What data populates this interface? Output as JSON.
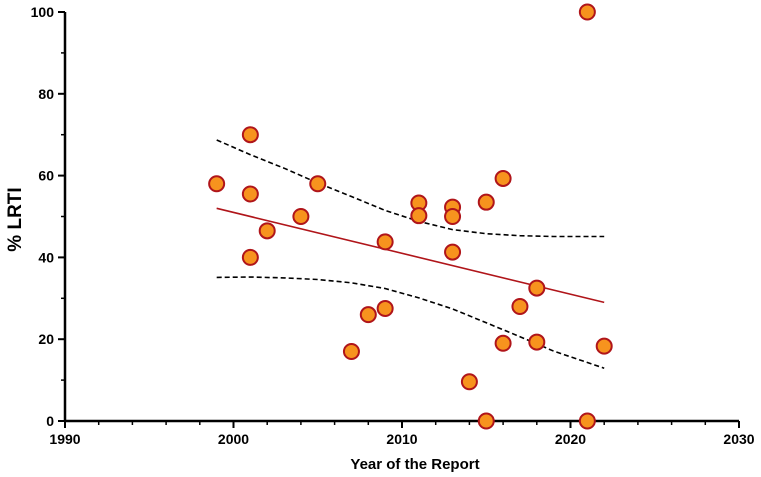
{
  "chart_data": {
    "type": "scatter",
    "title": "",
    "xlabel": "Year of the Report",
    "ylabel": "% LRTI",
    "xlim": [
      1990,
      2030
    ],
    "ylim": [
      0,
      100
    ],
    "x_ticks": [
      "1990",
      "2000",
      "2010",
      "2020",
      "2030"
    ],
    "y_ticks": [
      "0",
      "20",
      "40",
      "60",
      "80",
      "100"
    ],
    "grid": false,
    "colors": {
      "point_fill": "#f7931e",
      "point_stroke": "#b0151a",
      "regression_line": "#b0151a",
      "confidence_band": "#000000"
    },
    "points": [
      {
        "x": 1999,
        "y": 58
      },
      {
        "x": 2001,
        "y": 70
      },
      {
        "x": 2001,
        "y": 55.5
      },
      {
        "x": 2001,
        "y": 40
      },
      {
        "x": 2002,
        "y": 46.5
      },
      {
        "x": 2004,
        "y": 50
      },
      {
        "x": 2005,
        "y": 58
      },
      {
        "x": 2007,
        "y": 17
      },
      {
        "x": 2008,
        "y": 26
      },
      {
        "x": 2009,
        "y": 27.5
      },
      {
        "x": 2009,
        "y": 43.8
      },
      {
        "x": 2011,
        "y": 53.3
      },
      {
        "x": 2011,
        "y": 50.2
      },
      {
        "x": 2013,
        "y": 52.3
      },
      {
        "x": 2013,
        "y": 50
      },
      {
        "x": 2013,
        "y": 41.3
      },
      {
        "x": 2014,
        "y": 9.6
      },
      {
        "x": 2015,
        "y": 53.5
      },
      {
        "x": 2015,
        "y": 0
      },
      {
        "x": 2016,
        "y": 59.3
      },
      {
        "x": 2016,
        "y": 19
      },
      {
        "x": 2017,
        "y": 28
      },
      {
        "x": 2018,
        "y": 32.5
      },
      {
        "x": 2018,
        "y": 19.3
      },
      {
        "x": 2021,
        "y": 100
      },
      {
        "x": 2021,
        "y": 0
      },
      {
        "x": 2022,
        "y": 18.3
      }
    ],
    "regression": {
      "x": [
        1999,
        2022
      ],
      "y": [
        52,
        29
      ]
    },
    "confidence_upper": {
      "x": [
        1999,
        2001,
        2003,
        2005,
        2007,
        2009,
        2011,
        2013,
        2015,
        2017,
        2019,
        2021,
        2022
      ],
      "y": [
        68.7,
        65.1,
        61.8,
        58.2,
        54.9,
        51.5,
        48.8,
        46.8,
        45.8,
        45.3,
        45.1,
        45.1,
        45.1
      ]
    },
    "confidence_lower": {
      "x": [
        1999,
        2001,
        2003,
        2005,
        2007,
        2009,
        2011,
        2013,
        2015,
        2017,
        2019,
        2021,
        2022
      ],
      "y": [
        35.1,
        35.2,
        35.0,
        34.6,
        33.8,
        32.4,
        30.1,
        27.4,
        24.0,
        20.6,
        17.1,
        14.3,
        12.9
      ]
    }
  }
}
